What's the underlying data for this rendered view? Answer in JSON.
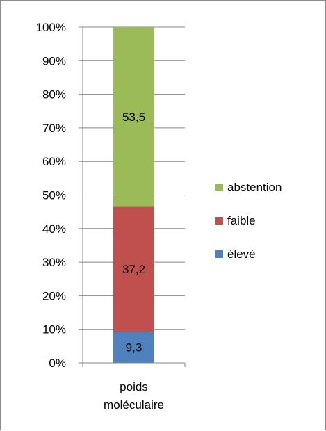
{
  "chart_data": {
    "type": "bar",
    "stacked": true,
    "percent": true,
    "categories": [
      "poids moléculaire"
    ],
    "series": [
      {
        "name": "élevé",
        "values": [
          9.3
        ],
        "label": "9,3",
        "color": "#4f81bd"
      },
      {
        "name": "faible",
        "values": [
          37.2
        ],
        "label": "37,2",
        "color": "#c0504d"
      },
      {
        "name": "abstention",
        "values": [
          53.5
        ],
        "label": "53,5",
        "color": "#9bbb59"
      }
    ],
    "yticks": [
      "0%",
      "10%",
      "20%",
      "30%",
      "40%",
      "50%",
      "60%",
      "70%",
      "80%",
      "90%",
      "100%"
    ],
    "ylim": [
      0,
      100
    ],
    "grid": true,
    "legend_position": "right",
    "legend_order": [
      "abstention",
      "faible",
      "élevé"
    ]
  }
}
